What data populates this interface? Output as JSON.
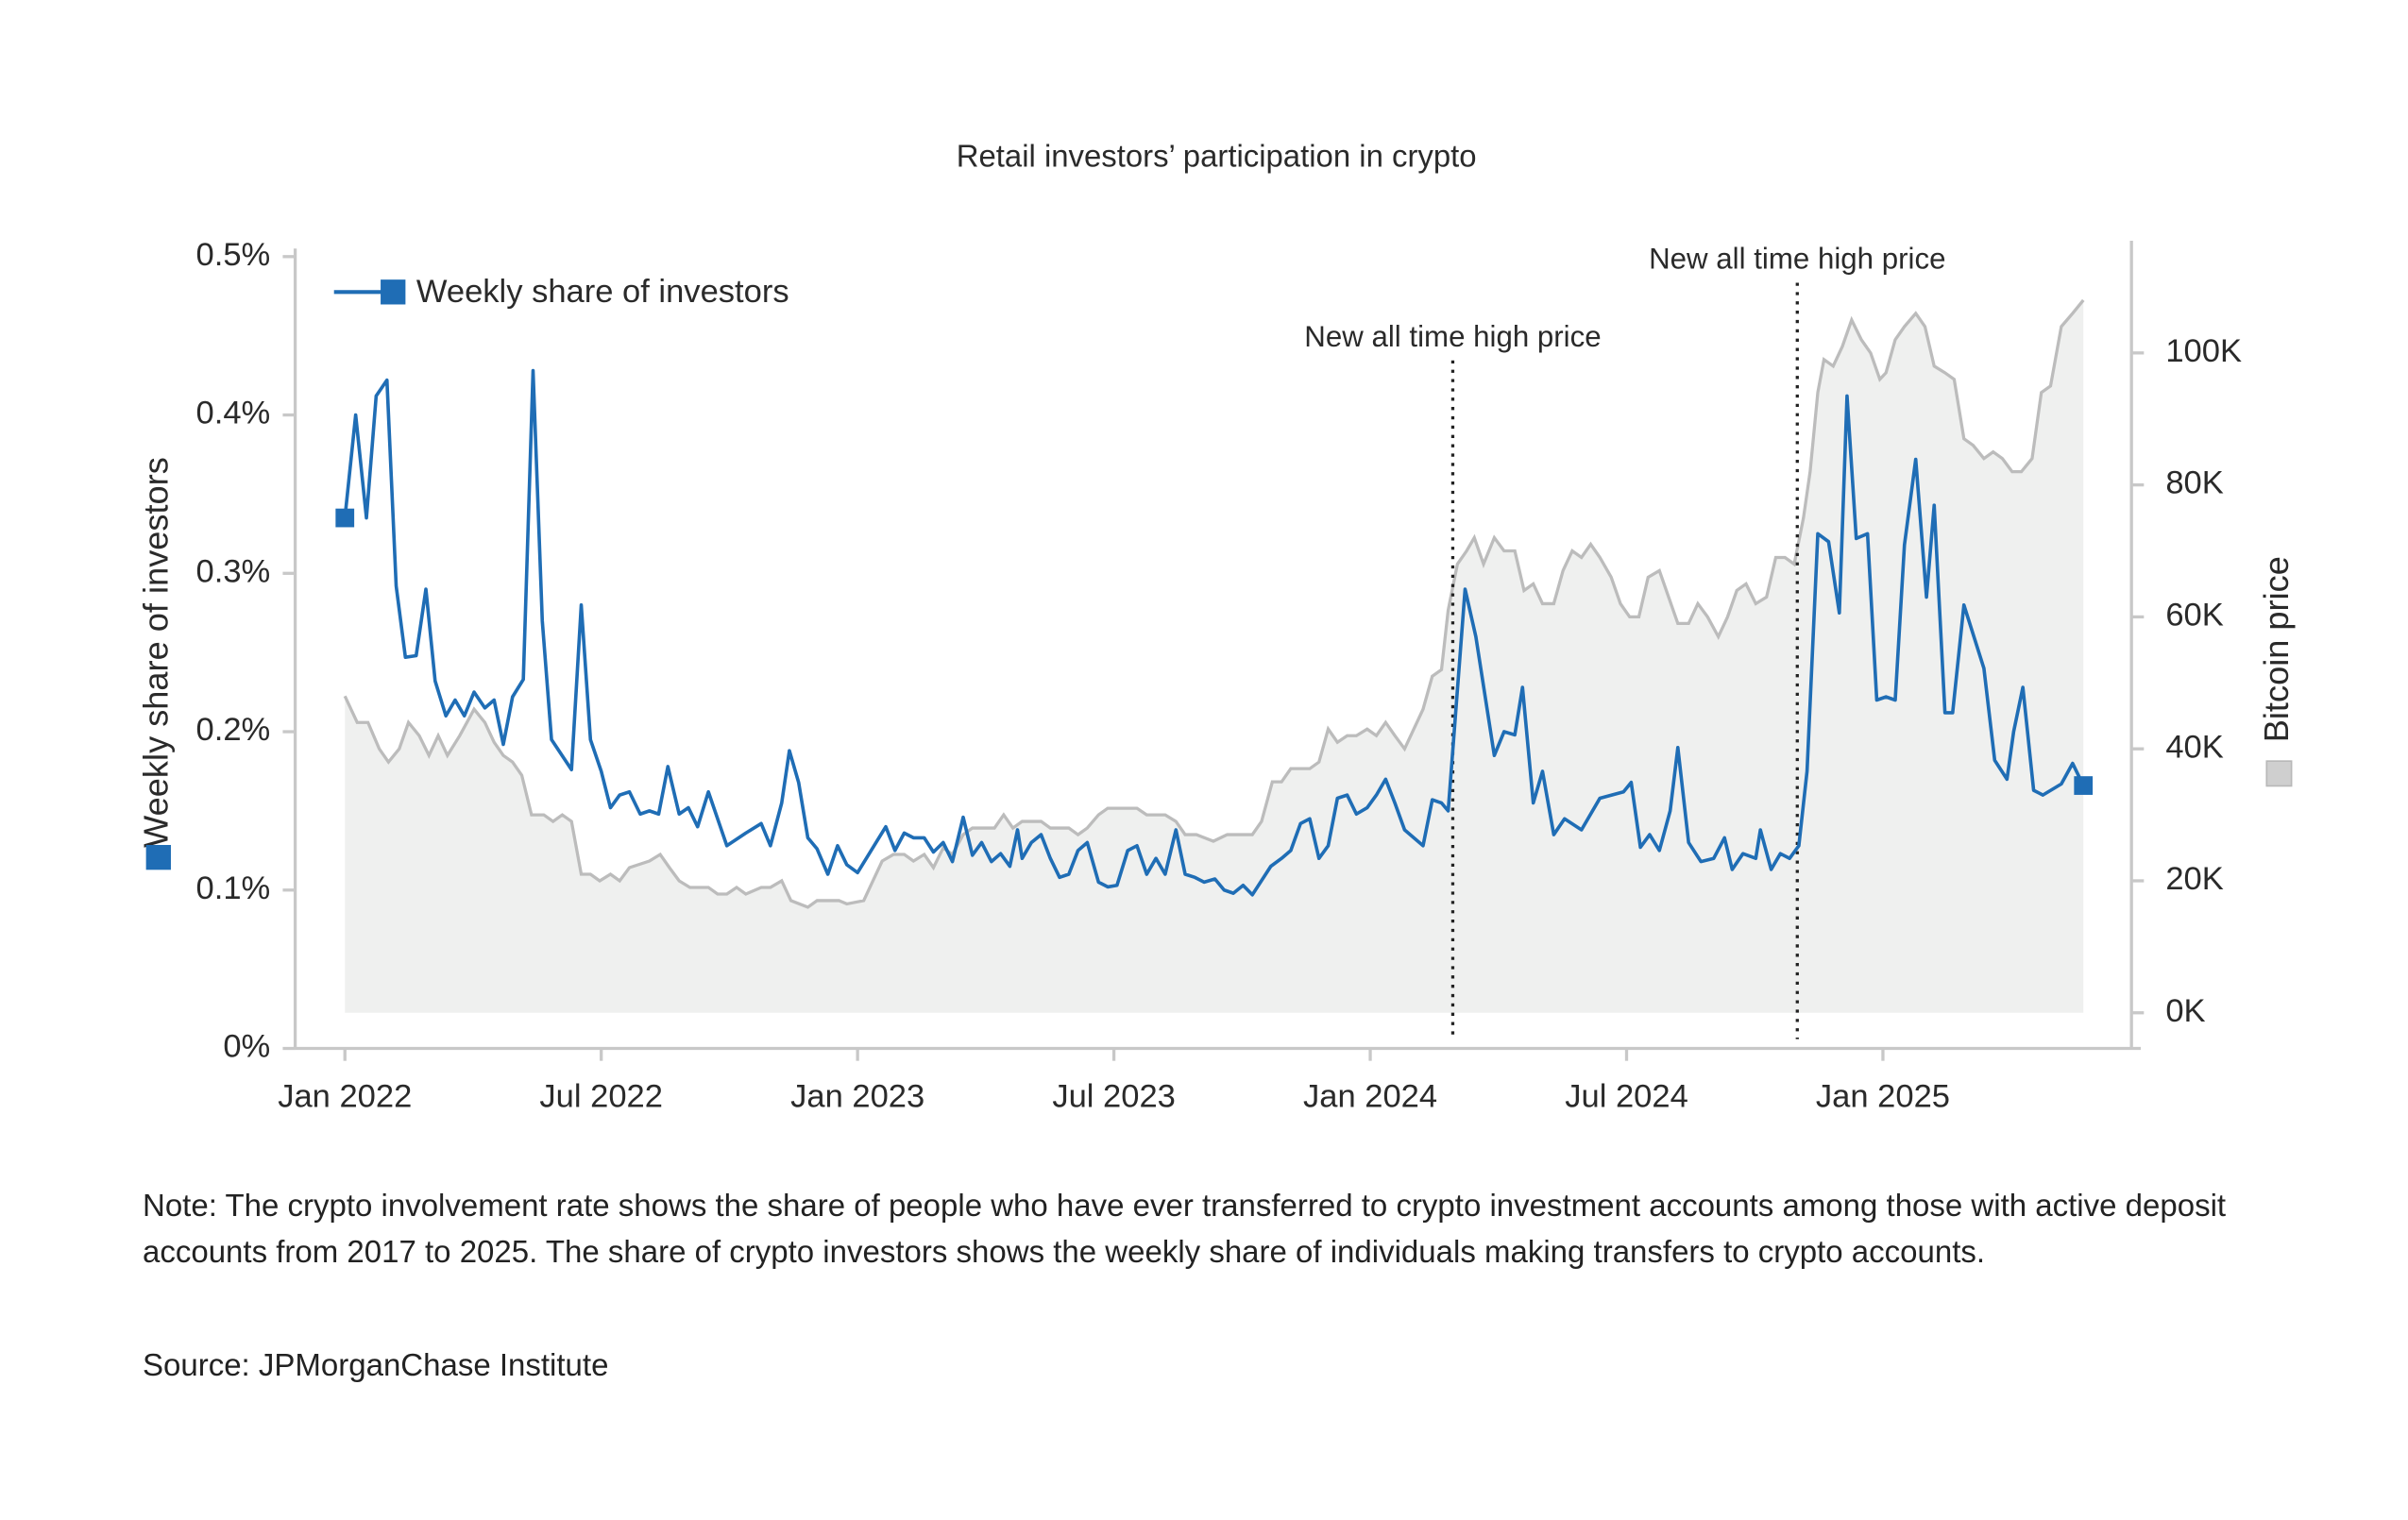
{
  "chart_data": {
    "type": "line",
    "title": "Retail investors’ participation in crypto",
    "ylabel": "Weekly share of investors",
    "y2label": "Bitcoin price",
    "xlim": [
      2021.903,
      2025.503
    ],
    "xticks": [
      {
        "value": 2022,
        "label": "Jan 2022"
      },
      {
        "value": 2022.5,
        "label": "Jul 2022"
      },
      {
        "value": 2023,
        "label": "Jan 2023"
      },
      {
        "value": 2023.5,
        "label": "Jul 2023"
      },
      {
        "value": 2024,
        "label": "Jan 2024"
      },
      {
        "value": 2024.5,
        "label": "Jul 2024"
      },
      {
        "value": 2025,
        "label": "Jan 2025"
      }
    ],
    "ylim": [
      0,
      0.51
    ],
    "yticks": [
      {
        "value": 0,
        "label": "0%"
      },
      {
        "value": 0.1,
        "label": "0.1%"
      },
      {
        "value": 0.2,
        "label": "0.2%"
      },
      {
        "value": 0.3,
        "label": "0.3%"
      },
      {
        "value": 0.4,
        "label": "0.4%"
      },
      {
        "value": 0.5,
        "label": "0.5%"
      }
    ],
    "y2lim": [
      -5400,
      117000
    ],
    "y2ticks": [
      {
        "value": 0,
        "label": "0K"
      },
      {
        "value": 20000,
        "label": "20K"
      },
      {
        "value": 40000,
        "label": "40K"
      },
      {
        "value": 60000,
        "label": "60K"
      },
      {
        "value": 80000,
        "label": "80K"
      },
      {
        "value": 100000,
        "label": "100K"
      }
    ],
    "annotations": [
      {
        "text": "New all time high price",
        "x": 2024.161
      },
      {
        "text": "New all time high price",
        "x": 2024.833
      }
    ],
    "series": [
      {
        "name": "Weekly share of investors",
        "color": "#1f6db5",
        "x": [
          2022.0,
          2022.021,
          2022.042,
          2022.061,
          2022.082,
          2022.1,
          2022.118,
          2022.139,
          2022.158,
          2022.176,
          2022.197,
          2022.215,
          2022.233,
          2022.252,
          2022.273,
          2022.291,
          2022.309,
          2022.327,
          2022.348,
          2022.367,
          2022.385,
          2022.403,
          2022.442,
          2022.461,
          2022.479,
          2022.5,
          2022.518,
          2022.536,
          2022.555,
          2022.576,
          2022.594,
          2022.612,
          2022.63,
          2022.652,
          2022.67,
          2022.688,
          2022.709,
          2022.745,
          2022.782,
          2022.812,
          2022.83,
          2022.852,
          2022.867,
          2022.885,
          2022.903,
          2022.921,
          2022.942,
          2022.961,
          2022.979,
          2023.0,
          2023.036,
          2023.055,
          2023.073,
          2023.091,
          2023.109,
          2023.13,
          2023.148,
          2023.167,
          2023.185,
          2023.206,
          2023.224,
          2023.242,
          2023.261,
          2023.279,
          2023.297,
          2023.312,
          2023.321,
          2023.339,
          2023.358,
          2023.376,
          2023.394,
          2023.412,
          2023.43,
          2023.448,
          2023.47,
          2023.488,
          2023.506,
          2023.527,
          2023.545,
          2023.564,
          2023.582,
          2023.6,
          2023.621,
          2023.639,
          2023.658,
          2023.676,
          2023.697,
          2023.715,
          2023.733,
          2023.752,
          2023.77,
          2023.806,
          2023.827,
          2023.845,
          2023.864,
          2023.882,
          2023.9,
          2023.918,
          2023.936,
          2023.955,
          2023.973,
          2023.994,
          2024.012,
          2024.03,
          2024.048,
          2024.067,
          2024.103,
          2024.121,
          2024.139,
          2024.152,
          2024.185,
          2024.206,
          2024.242,
          2024.261,
          2024.282,
          2024.297,
          2024.318,
          2024.336,
          2024.358,
          2024.379,
          2024.412,
          2024.448,
          2024.494,
          2024.509,
          2024.527,
          2024.545,
          2024.564,
          2024.585,
          2024.6,
          2024.621,
          2024.645,
          2024.67,
          2024.691,
          2024.706,
          2024.727,
          2024.752,
          2024.761,
          2024.782,
          2024.8,
          2024.818,
          2024.836,
          2024.852,
          2024.873,
          2024.894,
          2024.915,
          2024.93,
          2024.948,
          2024.97,
          2024.988,
          2025.006,
          2025.024,
          2025.042,
          2025.064,
          2025.085,
          2025.1,
          2025.121,
          2025.136,
          2025.158,
          2025.197,
          2025.218,
          2025.242,
          2025.255,
          2025.273,
          2025.294,
          2025.312,
          2025.348,
          2025.37,
          2025.391
        ],
        "values": [
          0.335,
          0.4,
          0.335,
          0.412,
          0.422,
          0.292,
          0.247,
          0.248,
          0.29,
          0.232,
          0.21,
          0.22,
          0.21,
          0.225,
          0.215,
          0.22,
          0.192,
          0.222,
          0.233,
          0.428,
          0.27,
          0.195,
          0.176,
          0.28,
          0.195,
          0.175,
          0.152,
          0.16,
          0.162,
          0.148,
          0.15,
          0.148,
          0.178,
          0.148,
          0.152,
          0.14,
          0.162,
          0.128,
          0.136,
          0.142,
          0.128,
          0.155,
          0.188,
          0.168,
          0.133,
          0.126,
          0.11,
          0.128,
          0.116,
          0.111,
          0.13,
          0.14,
          0.125,
          0.136,
          0.133,
          0.133,
          0.124,
          0.13,
          0.118,
          0.146,
          0.122,
          0.13,
          0.118,
          0.123,
          0.115,
          0.138,
          0.12,
          0.13,
          0.135,
          0.12,
          0.108,
          0.11,
          0.125,
          0.13,
          0.105,
          0.102,
          0.103,
          0.125,
          0.128,
          0.11,
          0.12,
          0.11,
          0.138,
          0.11,
          0.108,
          0.105,
          0.107,
          0.1,
          0.098,
          0.103,
          0.097,
          0.115,
          0.12,
          0.125,
          0.142,
          0.145,
          0.12,
          0.128,
          0.158,
          0.16,
          0.148,
          0.152,
          0.16,
          0.17,
          0.155,
          0.138,
          0.128,
          0.157,
          0.155,
          0.15,
          0.29,
          0.26,
          0.185,
          0.2,
          0.198,
          0.228,
          0.155,
          0.175,
          0.135,
          0.145,
          0.138,
          0.158,
          0.162,
          0.168,
          0.127,
          0.135,
          0.125,
          0.15,
          0.19,
          0.13,
          0.118,
          0.12,
          0.133,
          0.113,
          0.123,
          0.12,
          0.138,
          0.113,
          0.123,
          0.12,
          0.128,
          0.175,
          0.325,
          0.32,
          0.275,
          0.412,
          0.322,
          0.325,
          0.22,
          0.222,
          0.22,
          0.318,
          0.372,
          0.285,
          0.343,
          0.212,
          0.212,
          0.28,
          0.24,
          0.182,
          0.17,
          0.2,
          0.228,
          0.163,
          0.16,
          0.167,
          0.18,
          0.166
        ]
      },
      {
        "color": "#bcbcbc",
        "fill": "#eff0ef",
        "axis": "y2",
        "x": [
          2022.0,
          2022.024,
          2022.045,
          2022.067,
          2022.085,
          2022.106,
          2022.124,
          2022.145,
          2022.164,
          2022.182,
          2022.2,
          2022.224,
          2022.252,
          2022.273,
          2022.291,
          2022.309,
          2022.327,
          2022.345,
          2022.364,
          2022.388,
          2022.406,
          2022.424,
          2022.442,
          2022.461,
          2022.479,
          2022.497,
          2022.518,
          2022.536,
          2022.555,
          2022.594,
          2022.615,
          2022.633,
          2022.652,
          2022.673,
          2022.709,
          2022.727,
          2022.745,
          2022.764,
          2022.782,
          2022.812,
          2022.83,
          2022.852,
          2022.87,
          2022.903,
          2022.921,
          2022.942,
          2022.964,
          2022.979,
          2023.012,
          2023.03,
          2023.048,
          2023.07,
          2023.091,
          2023.109,
          2023.13,
          2023.148,
          2023.167,
          2023.185,
          2023.206,
          2023.224,
          2023.245,
          2023.267,
          2023.285,
          2023.303,
          2023.321,
          2023.358,
          2023.376,
          2023.412,
          2023.43,
          2023.448,
          2023.47,
          2023.488,
          2023.509,
          2023.545,
          2023.564,
          2023.6,
          2023.621,
          2023.639,
          2023.661,
          2023.694,
          2023.721,
          2023.752,
          2023.77,
          2023.788,
          2023.809,
          2023.827,
          2023.845,
          2023.882,
          2023.9,
          2023.918,
          2023.936,
          2023.955,
          2023.973,
          2023.994,
          2024.012,
          2024.03,
          2024.048,
          2024.067,
          2024.085,
          2024.103,
          2024.121,
          2024.139,
          2024.152,
          2024.17,
          2024.188,
          2024.203,
          2024.221,
          2024.242,
          2024.261,
          2024.282,
          2024.3,
          2024.318,
          2024.336,
          2024.358,
          2024.376,
          2024.394,
          2024.412,
          2024.43,
          2024.448,
          2024.47,
          2024.488,
          2024.506,
          2024.524,
          2024.542,
          2024.564,
          2024.582,
          2024.6,
          2024.621,
          2024.639,
          2024.658,
          2024.679,
          2024.697,
          2024.715,
          2024.733,
          2024.752,
          2024.773,
          2024.791,
          2024.809,
          2024.827,
          2024.845,
          2024.858,
          2024.873,
          2024.885,
          2024.903,
          2024.921,
          2024.939,
          2024.958,
          2024.976,
          2024.994,
          2025.006,
          2025.024,
          2025.042,
          2025.064,
          2025.082,
          2025.1,
          2025.121,
          2025.139,
          2025.158,
          2025.176,
          2025.197,
          2025.215,
          2025.233,
          2025.252,
          2025.27,
          2025.291,
          2025.309,
          2025.327,
          2025.348,
          2025.37,
          2025.391
        ],
        "values": [
          48000,
          44000,
          44000,
          40000,
          38000,
          40000,
          44000,
          42000,
          39000,
          42000,
          39000,
          42000,
          46000,
          44000,
          41000,
          39000,
          38000,
          36000,
          30000,
          30000,
          29000,
          30000,
          29000,
          21000,
          21000,
          20000,
          21000,
          20000,
          22000,
          23000,
          24000,
          22000,
          20000,
          19000,
          19000,
          18000,
          18000,
          19000,
          18000,
          19000,
          19000,
          20000,
          17000,
          16000,
          17000,
          17000,
          17000,
          16500,
          17000,
          20000,
          23000,
          24000,
          24000,
          23000,
          24000,
          22000,
          25000,
          24000,
          27000,
          28000,
          28000,
          28000,
          30000,
          28000,
          29000,
          29000,
          28000,
          28000,
          27000,
          28000,
          30000,
          31000,
          31000,
          31000,
          30000,
          30000,
          29000,
          27000,
          27000,
          26000,
          27000,
          27000,
          27000,
          29000,
          35000,
          35000,
          37000,
          37000,
          38000,
          43000,
          41000,
          42000,
          42000,
          43000,
          42000,
          44000,
          42000,
          40000,
          43000,
          46000,
          51000,
          52000,
          61000,
          68000,
          70000,
          72000,
          68000,
          72000,
          70000,
          70000,
          64000,
          65000,
          62000,
          62000,
          67000,
          70000,
          69000,
          71000,
          69000,
          66000,
          62000,
          60000,
          60000,
          66000,
          67000,
          63000,
          59000,
          59000,
          62000,
          60000,
          57000,
          60000,
          64000,
          65000,
          62000,
          63000,
          69000,
          69000,
          68000,
          75000,
          82000,
          94000,
          99000,
          98000,
          101000,
          105000,
          102000,
          100000,
          96000,
          97000,
          102000,
          104000,
          106000,
          104000,
          98000,
          97000,
          96000,
          87000,
          86000,
          84000,
          85000,
          84000,
          82000,
          82000,
          84000,
          94000,
          95000,
          104000,
          106000,
          108000
        ]
      }
    ],
    "note": "Note: The crypto involvement rate shows the share of people who have ever transferred to crypto investment accounts among those with active deposit accounts from 2017 to 2025. The share of crypto investors shows the weekly share of individuals making transfers to crypto accounts.",
    "source": "Source: JPMorganChase Institute"
  }
}
